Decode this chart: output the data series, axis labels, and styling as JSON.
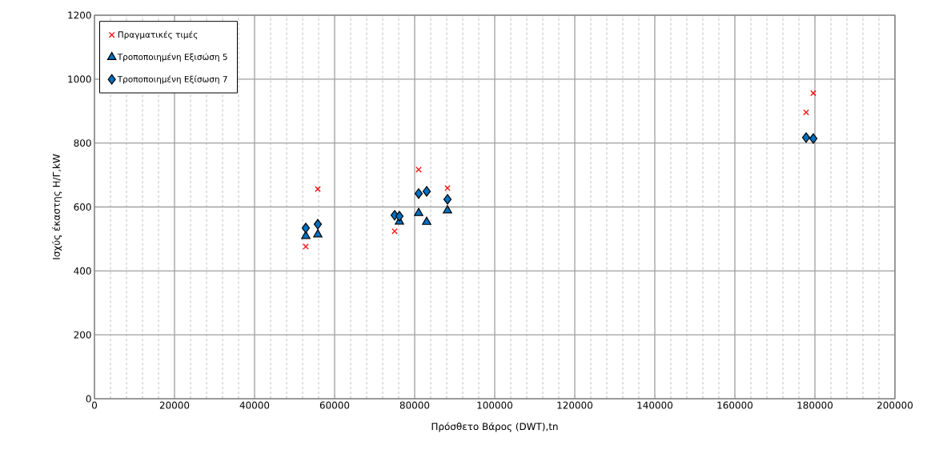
{
  "chart_data": {
    "type": "scatter",
    "xlabel": "Πρόσθετο Βάρος (DWT),tn",
    "ylabel": "Ισχύς έκαστης Η/Γ,kW",
    "xlim": [
      0,
      200000
    ],
    "ylim": [
      0,
      1200
    ],
    "xticks": [
      0,
      20000,
      40000,
      60000,
      80000,
      100000,
      120000,
      140000,
      160000,
      180000,
      200000
    ],
    "yticks": [
      0,
      200,
      400,
      600,
      800,
      1000,
      1200
    ],
    "grid": true,
    "legend": "top left",
    "series": [
      {
        "name": "Πραγματικές τιμές",
        "color": "#ff0000",
        "marker": "cross",
        "x": [
          52800,
          55800,
          75000,
          76200,
          81000,
          83000,
          88200,
          177800,
          179600
        ],
        "values": [
          476,
          656,
          524,
          null,
          717,
          null,
          659,
          896,
          956
        ]
      },
      {
        "name": "Τροποποιημένη Εξισώση 5",
        "color": "#0070c0",
        "marker": "triangle",
        "x": [
          52800,
          55800,
          75000,
          76200,
          81000,
          83000,
          88200
        ],
        "values": [
          509,
          514,
          null,
          554,
          581,
          553,
          589
        ]
      },
      {
        "name": "Τροποποιημένη Εξίσωση 7",
        "color": "#0070c0",
        "marker": "diamond",
        "x": [
          52800,
          55800,
          75000,
          76200,
          81000,
          83000,
          88200,
          177800,
          179600
        ],
        "values": [
          534,
          546,
          574,
          571,
          642,
          649,
          624,
          817,
          814
        ]
      }
    ]
  }
}
